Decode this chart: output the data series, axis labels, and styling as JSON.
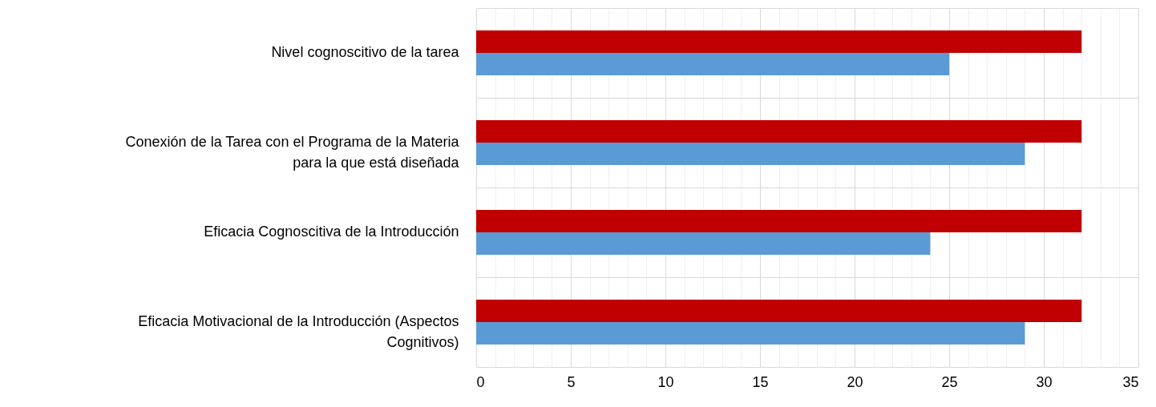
{
  "chart_data": {
    "type": "bar",
    "orientation": "horizontal",
    "categories": [
      "Nivel cognoscitivo de la tarea",
      "Conexión de la Tarea con el Programa de la Materia para la que está diseñada",
      "Eficacia Cognoscitiva de la Introducción",
      "Eficacia Motivacional de la Introducción (Aspectos Cognitivos)"
    ],
    "series": [
      {
        "color": "#c00000",
        "values": [
          32,
          32,
          32,
          32
        ]
      },
      {
        "color": "#5b9bd5",
        "values": [
          25,
          29,
          24,
          29
        ]
      }
    ],
    "xlim": [
      0,
      35
    ],
    "xticks": [
      0,
      {
        "value": 1,
        "label": null
      },
      {
        "value": 2,
        "label": null
      },
      {
        "value": 3,
        "label": null
      },
      {
        "value": 4,
        "label": null
      },
      5,
      {
        "value": 6,
        "label": null
      },
      {
        "value": 7,
        "label": null
      },
      {
        "value": 8,
        "label": null
      },
      {
        "value": 9,
        "label": null
      },
      10,
      {
        "value": 11,
        "label": null
      },
      {
        "value": 12,
        "label": null
      },
      {
        "value": 13,
        "label": null
      },
      {
        "value": 14,
        "label": null
      },
      15,
      {
        "value": 16,
        "label": null
      },
      {
        "value": 17,
        "label": null
      },
      {
        "value": 18,
        "label": null
      },
      {
        "value": 19,
        "label": null
      },
      20,
      {
        "value": 21,
        "label": null
      },
      {
        "value": 22,
        "label": null
      },
      {
        "value": 23,
        "label": null
      },
      {
        "value": 24,
        "label": null
      },
      25,
      {
        "value": 26,
        "label": null
      },
      {
        "value": 27,
        "label": null
      },
      {
        "value": 28,
        "label": null
      },
      {
        "value": 29,
        "label": null
      },
      30,
      {
        "value": 31,
        "label": null
      },
      {
        "value": 32,
        "label": null
      },
      {
        "value": 33,
        "label": null
      },
      {
        "value": 34,
        "label": null
      },
      35
    ],
    "grid": true
  }
}
